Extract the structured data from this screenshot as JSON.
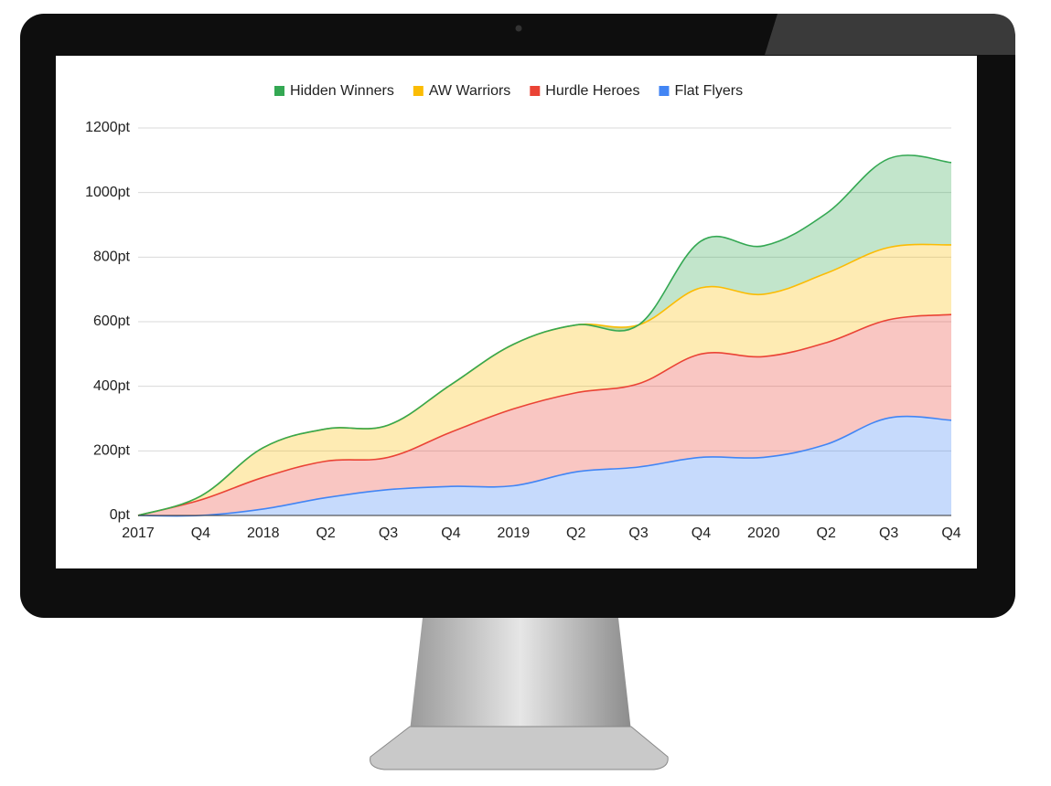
{
  "chart_data": {
    "type": "stacked-area",
    "categories": [
      "2017",
      "Q4",
      "2018",
      "Q2",
      "Q3",
      "Q4",
      "2019",
      "Q2",
      "Q3",
      "Q4",
      "2020",
      "Q2",
      "Q3",
      "Q4"
    ],
    "series": [
      {
        "name": "Hidden Winners",
        "color": "#34a853",
        "values": [
          0,
          0,
          0,
          0,
          0,
          0,
          0,
          0,
          0,
          145,
          150,
          185,
          275,
          255
        ]
      },
      {
        "name": "AW Warriors",
        "color": "#fbbc04",
        "values": [
          0,
          12,
          92,
          100,
          100,
          147,
          200,
          210,
          182,
          205,
          193,
          215,
          224,
          216
        ]
      },
      {
        "name": "Hurdle Heroes",
        "color": "#ea4335",
        "values": [
          0,
          48,
          98,
          113,
          100,
          168,
          238,
          245,
          258,
          320,
          312,
          315,
          304,
          327
        ]
      },
      {
        "name": "Flat Flyers",
        "color": "#4285f4",
        "values": [
          0,
          0,
          20,
          55,
          80,
          90,
          92,
          135,
          150,
          180,
          180,
          220,
          302,
          295
        ]
      }
    ],
    "ylim": [
      0,
      1200
    ],
    "yticks": [
      {
        "value": 0,
        "label": "0pt"
      },
      {
        "value": 200,
        "label": "200pt"
      },
      {
        "value": 400,
        "label": "400pt"
      },
      {
        "value": 600,
        "label": "600pt"
      },
      {
        "value": 800,
        "label": "800pt"
      },
      {
        "value": 1000,
        "label": "1000pt"
      },
      {
        "value": 1200,
        "label": "1200pt"
      }
    ],
    "grid": true,
    "legend": "top"
  }
}
